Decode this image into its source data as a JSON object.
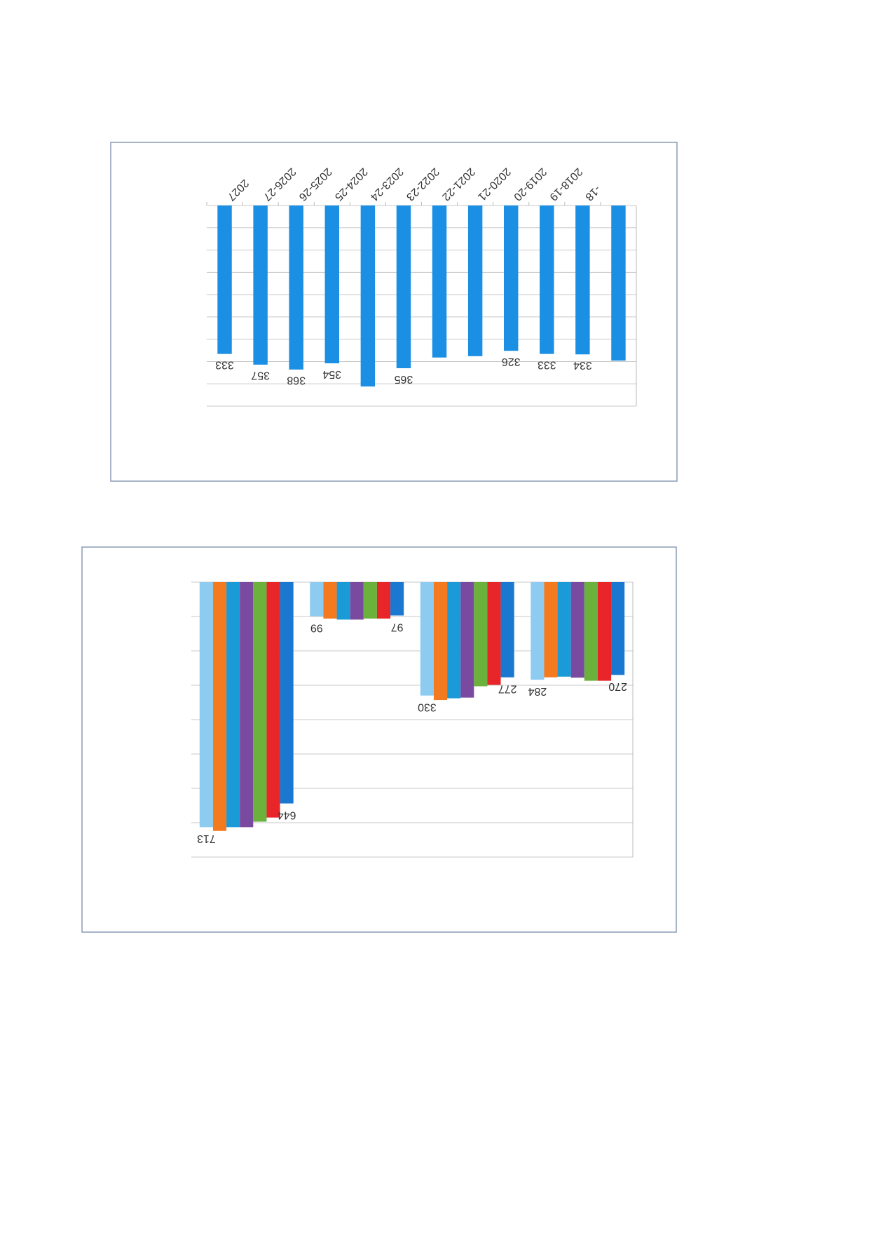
{
  "charts": [
    {
      "type": "bar",
      "color": "#1a8fe3",
      "categories": [
        "2027",
        "2026-27",
        "2025-26",
        "2024-25",
        "2023-24",
        "2022-23",
        "2021-22",
        "2020-21",
        "2019-20",
        "2018-19",
        "-18",
        null
      ],
      "values": [
        333,
        357,
        368,
        354,
        406,
        365,
        341,
        338,
        326,
        333,
        334,
        348
      ],
      "value_labels": [
        "333",
        "357",
        "368",
        "354",
        null,
        "365",
        null,
        null,
        "326",
        "333",
        "334",
        null
      ],
      "ylim": [
        0,
        450
      ],
      "yticks": [
        0,
        50,
        100,
        150,
        200,
        250,
        300,
        350,
        400,
        450
      ],
      "grid": true,
      "upside_down": true
    },
    {
      "type": "grouped_bar",
      "categories": [
        null,
        null,
        null,
        null
      ],
      "series": [
        {
          "color": "#8ecbf0",
          "values": [
            713,
            99,
            330,
            284
          ],
          "value_labels": [
            "713",
            "99",
            "330",
            "284"
          ]
        },
        {
          "color": "#f47a20",
          "values": [
            724,
            106,
            343,
            277
          ]
        },
        {
          "color": "#1a9ad6",
          "values": [
            713,
            109,
            338,
            275
          ]
        },
        {
          "color": "#7a4aa0",
          "values": [
            713,
            109,
            336,
            278
          ]
        },
        {
          "color": "#6ab23c",
          "values": [
            697,
            106,
            303,
            287
          ]
        },
        {
          "color": "#e8262a",
          "values": [
            685,
            106,
            299,
            287
          ]
        },
        {
          "color": "#1a78d0",
          "values": [
            644,
            97,
            277,
            270
          ],
          "value_labels": [
            "644",
            "97",
            "277",
            "270"
          ]
        }
      ],
      "ylim": [
        0,
        800
      ],
      "yticks": [
        0,
        100,
        200,
        300,
        400,
        500,
        600,
        700,
        800
      ],
      "grid": true,
      "upside_down": true
    }
  ]
}
